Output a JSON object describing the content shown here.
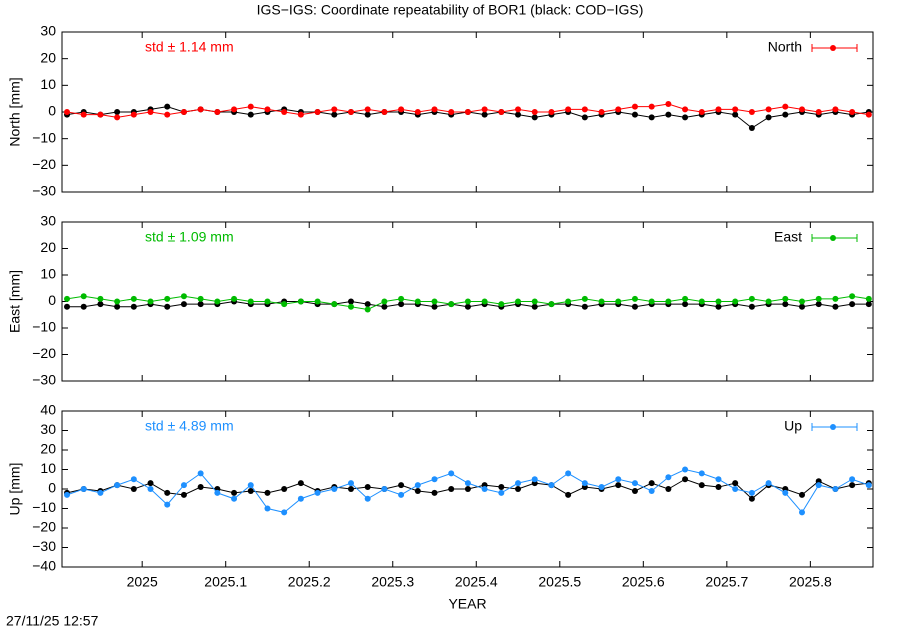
{
  "title": "IGS−IGS: Coordinate repeatability of BOR1 (black: COD−IGS)",
  "timestamp": "27/11/25 12:57",
  "chart_data": [
    {
      "type": "line",
      "ylabel": "North [mm]",
      "annotation": "std ± 1.14 mm",
      "xlim": [
        2024.904,
        2025.875
      ],
      "xticks": [
        2025,
        2025.1,
        2025.2,
        2025.3,
        2025.4,
        2025.5,
        2025.6,
        2025.7,
        2025.8
      ],
      "ylim": [
        -30,
        30
      ],
      "yticks": [
        {
          "value": -30,
          "label": "−30"
        },
        {
          "value": -20,
          "label": "−20"
        },
        {
          "value": -10,
          "label": "−10"
        },
        0,
        10,
        20,
        30
      ],
      "x": [
        2024.91,
        2024.93,
        2024.95,
        2024.97,
        2024.99,
        2025.01,
        2025.03,
        2025.05,
        2025.07,
        2025.09,
        2025.11,
        2025.13,
        2025.15,
        2025.17,
        2025.19,
        2025.21,
        2025.23,
        2025.25,
        2025.27,
        2025.29,
        2025.31,
        2025.33,
        2025.35,
        2025.37,
        2025.39,
        2025.41,
        2025.43,
        2025.45,
        2025.47,
        2025.49,
        2025.51,
        2025.53,
        2025.55,
        2025.57,
        2025.59,
        2025.61,
        2025.63,
        2025.65,
        2025.67,
        2025.69,
        2025.71,
        2025.73,
        2025.75,
        2025.77,
        2025.79,
        2025.81,
        2025.83,
        2025.85,
        2025.87
      ],
      "series": [
        {
          "color": "#000000",
          "values": [
            -1,
            0,
            -1,
            0,
            0,
            1,
            2,
            0,
            1,
            0,
            0,
            -1,
            0,
            1,
            0,
            0,
            -1,
            0,
            -1,
            0,
            0,
            -1,
            0,
            -1,
            0,
            -1,
            0,
            -1,
            -2,
            -1,
            0,
            -2,
            -1,
            0,
            -1,
            -2,
            -1,
            -2,
            -1,
            0,
            -1,
            -6,
            -2,
            -1,
            0,
            -1,
            0,
            -1,
            0
          ]
        },
        {
          "name": "North",
          "color": "#ff0000",
          "values": [
            0,
            -1,
            -1,
            -2,
            -1,
            0,
            -1,
            0,
            1,
            0,
            1,
            2,
            1,
            0,
            -1,
            0,
            1,
            0,
            1,
            0,
            1,
            0,
            1,
            0,
            0,
            1,
            0,
            1,
            0,
            0,
            1,
            1,
            0,
            1,
            2,
            2,
            3,
            1,
            0,
            1,
            1,
            0,
            1,
            2,
            1,
            0,
            1,
            0,
            -1
          ]
        }
      ]
    },
    {
      "type": "line",
      "ylabel": "East [mm]",
      "annotation": "std ± 1.09 mm",
      "xlim": [
        2024.904,
        2025.875
      ],
      "xticks": [
        2025,
        2025.1,
        2025.2,
        2025.3,
        2025.4,
        2025.5,
        2025.6,
        2025.7,
        2025.8
      ],
      "ylim": [
        -30,
        30
      ],
      "yticks": [
        {
          "value": -30,
          "label": "−30"
        },
        {
          "value": -20,
          "label": "−20"
        },
        {
          "value": -10,
          "label": "−10"
        },
        0,
        10,
        20,
        30
      ],
      "x": [
        2024.91,
        2024.93,
        2024.95,
        2024.97,
        2024.99,
        2025.01,
        2025.03,
        2025.05,
        2025.07,
        2025.09,
        2025.11,
        2025.13,
        2025.15,
        2025.17,
        2025.19,
        2025.21,
        2025.23,
        2025.25,
        2025.27,
        2025.29,
        2025.31,
        2025.33,
        2025.35,
        2025.37,
        2025.39,
        2025.41,
        2025.43,
        2025.45,
        2025.47,
        2025.49,
        2025.51,
        2025.53,
        2025.55,
        2025.57,
        2025.59,
        2025.61,
        2025.63,
        2025.65,
        2025.67,
        2025.69,
        2025.71,
        2025.73,
        2025.75,
        2025.77,
        2025.79,
        2025.81,
        2025.83,
        2025.85,
        2025.87
      ],
      "series": [
        {
          "color": "#000000",
          "values": [
            -2,
            -2,
            -1,
            -2,
            -2,
            -1,
            -2,
            -1,
            -1,
            -1,
            0,
            -1,
            -1,
            0,
            0,
            -1,
            -1,
            0,
            -1,
            -2,
            -1,
            -1,
            -2,
            -1,
            -2,
            -1,
            -2,
            -1,
            -2,
            -1,
            -1,
            -2,
            -1,
            -1,
            -2,
            -1,
            -1,
            -1,
            -1,
            -2,
            -1,
            -2,
            -1,
            -1,
            -2,
            -1,
            -2,
            -1,
            -1
          ]
        },
        {
          "name": "East",
          "color": "#00bb00",
          "values": [
            1,
            2,
            1,
            0,
            1,
            0,
            1,
            2,
            1,
            0,
            1,
            0,
            0,
            -1,
            0,
            0,
            -1,
            -2,
            -3,
            0,
            1,
            0,
            0,
            -1,
            0,
            0,
            -1,
            0,
            0,
            -1,
            0,
            1,
            0,
            0,
            1,
            0,
            0,
            1,
            0,
            0,
            0,
            1,
            0,
            1,
            0,
            1,
            1,
            2,
            1
          ]
        }
      ]
    },
    {
      "type": "line",
      "ylabel": "Up [mm]",
      "annotation": "std ± 4.89 mm",
      "xlabel": "YEAR",
      "xlim": [
        2024.904,
        2025.875
      ],
      "xticks": [
        2025,
        2025.1,
        2025.2,
        2025.3,
        2025.4,
        2025.5,
        2025.6,
        2025.7,
        2025.8
      ],
      "ylim": [
        -40,
        40
      ],
      "yticks": [
        {
          "value": -40,
          "label": "−40"
        },
        {
          "value": -30,
          "label": "−30"
        },
        {
          "value": -20,
          "label": "−20"
        },
        {
          "value": -10,
          "label": "−10"
        },
        0,
        10,
        20,
        30,
        40
      ],
      "x": [
        2024.91,
        2024.93,
        2024.95,
        2024.97,
        2024.99,
        2025.01,
        2025.03,
        2025.05,
        2025.07,
        2025.09,
        2025.11,
        2025.13,
        2025.15,
        2025.17,
        2025.19,
        2025.21,
        2025.23,
        2025.25,
        2025.27,
        2025.29,
        2025.31,
        2025.33,
        2025.35,
        2025.37,
        2025.39,
        2025.41,
        2025.43,
        2025.45,
        2025.47,
        2025.49,
        2025.51,
        2025.53,
        2025.55,
        2025.57,
        2025.59,
        2025.61,
        2025.63,
        2025.65,
        2025.67,
        2025.69,
        2025.71,
        2025.73,
        2025.75,
        2025.77,
        2025.79,
        2025.81,
        2025.83,
        2025.85,
        2025.87
      ],
      "series": [
        {
          "color": "#000000",
          "values": [
            -2,
            0,
            -1,
            2,
            0,
            3,
            -2,
            -3,
            1,
            0,
            -2,
            -1,
            -2,
            0,
            3,
            -1,
            1,
            0,
            1,
            0,
            2,
            -1,
            -2,
            0,
            0,
            2,
            1,
            0,
            3,
            2,
            -3,
            1,
            0,
            2,
            -1,
            3,
            0,
            5,
            2,
            1,
            3,
            -5,
            2,
            0,
            -3,
            4,
            0,
            2,
            3
          ]
        },
        {
          "name": "Up",
          "color": "#1e90ff",
          "values": [
            -3,
            0,
            -2,
            2,
            5,
            0,
            -8,
            2,
            8,
            -2,
            -5,
            2,
            -10,
            -12,
            -5,
            -2,
            0,
            3,
            -5,
            0,
            -3,
            2,
            5,
            8,
            3,
            0,
            -2,
            3,
            5,
            2,
            8,
            3,
            1,
            5,
            3,
            -1,
            6,
            10,
            8,
            5,
            0,
            -2,
            3,
            -2,
            -12,
            2,
            0,
            5,
            2
          ]
        }
      ]
    }
  ]
}
